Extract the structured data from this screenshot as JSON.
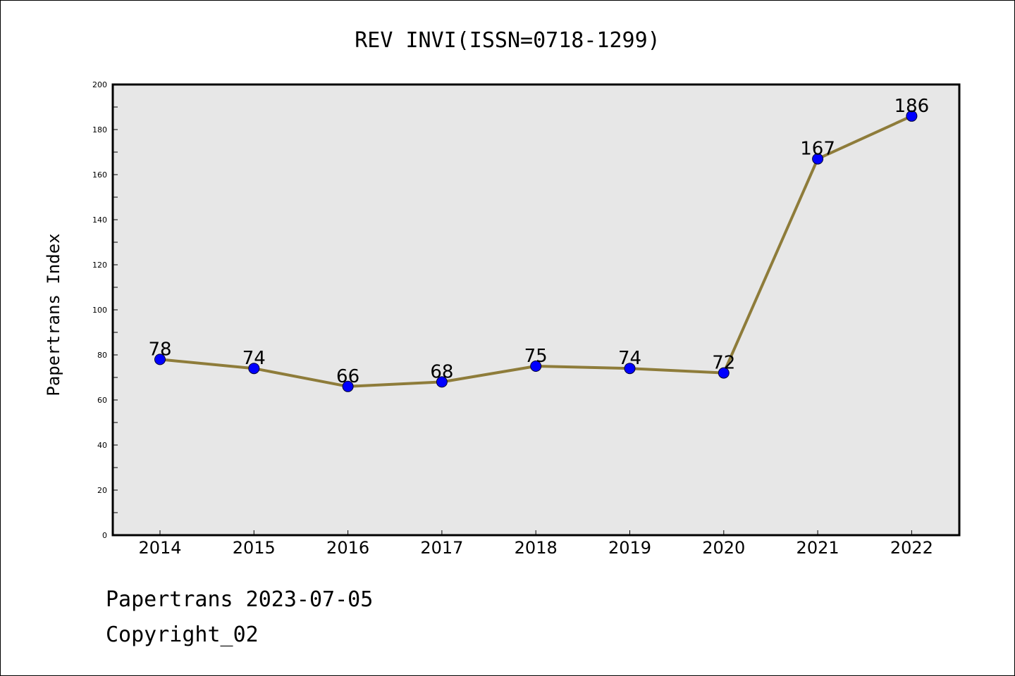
{
  "chart_data": {
    "type": "line",
    "title": "REV INVI(ISSN=0718-1299)",
    "xlabel": "",
    "ylabel": "Papertrans Index",
    "categories": [
      "2014",
      "2015",
      "2016",
      "2017",
      "2018",
      "2019",
      "2020",
      "2021",
      "2022"
    ],
    "series": [
      {
        "values": [
          78,
          74,
          66,
          68,
          75,
          74,
          72,
          167,
          186
        ]
      }
    ],
    "data_labels": [
      "78",
      "74",
      "66",
      "68",
      "75",
      "74",
      "72",
      "167",
      "186"
    ],
    "ylim": [
      0,
      200
    ],
    "yticks": [
      0,
      20,
      40,
      60,
      80,
      100,
      120,
      140,
      160,
      180,
      200
    ],
    "ytick_labels": [
      "0",
      "20",
      "40",
      "60",
      "80",
      "100",
      "120",
      "140",
      "160",
      "180",
      "200"
    ],
    "grid": false,
    "legend": "none",
    "colors": {
      "line": "#8e7c3a",
      "marker": "#0000ff",
      "plot_background": "#e7e7e7"
    }
  },
  "footer": {
    "date_line": "Papertrans 2023-07-05",
    "copyright_line": "Copyright_02"
  }
}
